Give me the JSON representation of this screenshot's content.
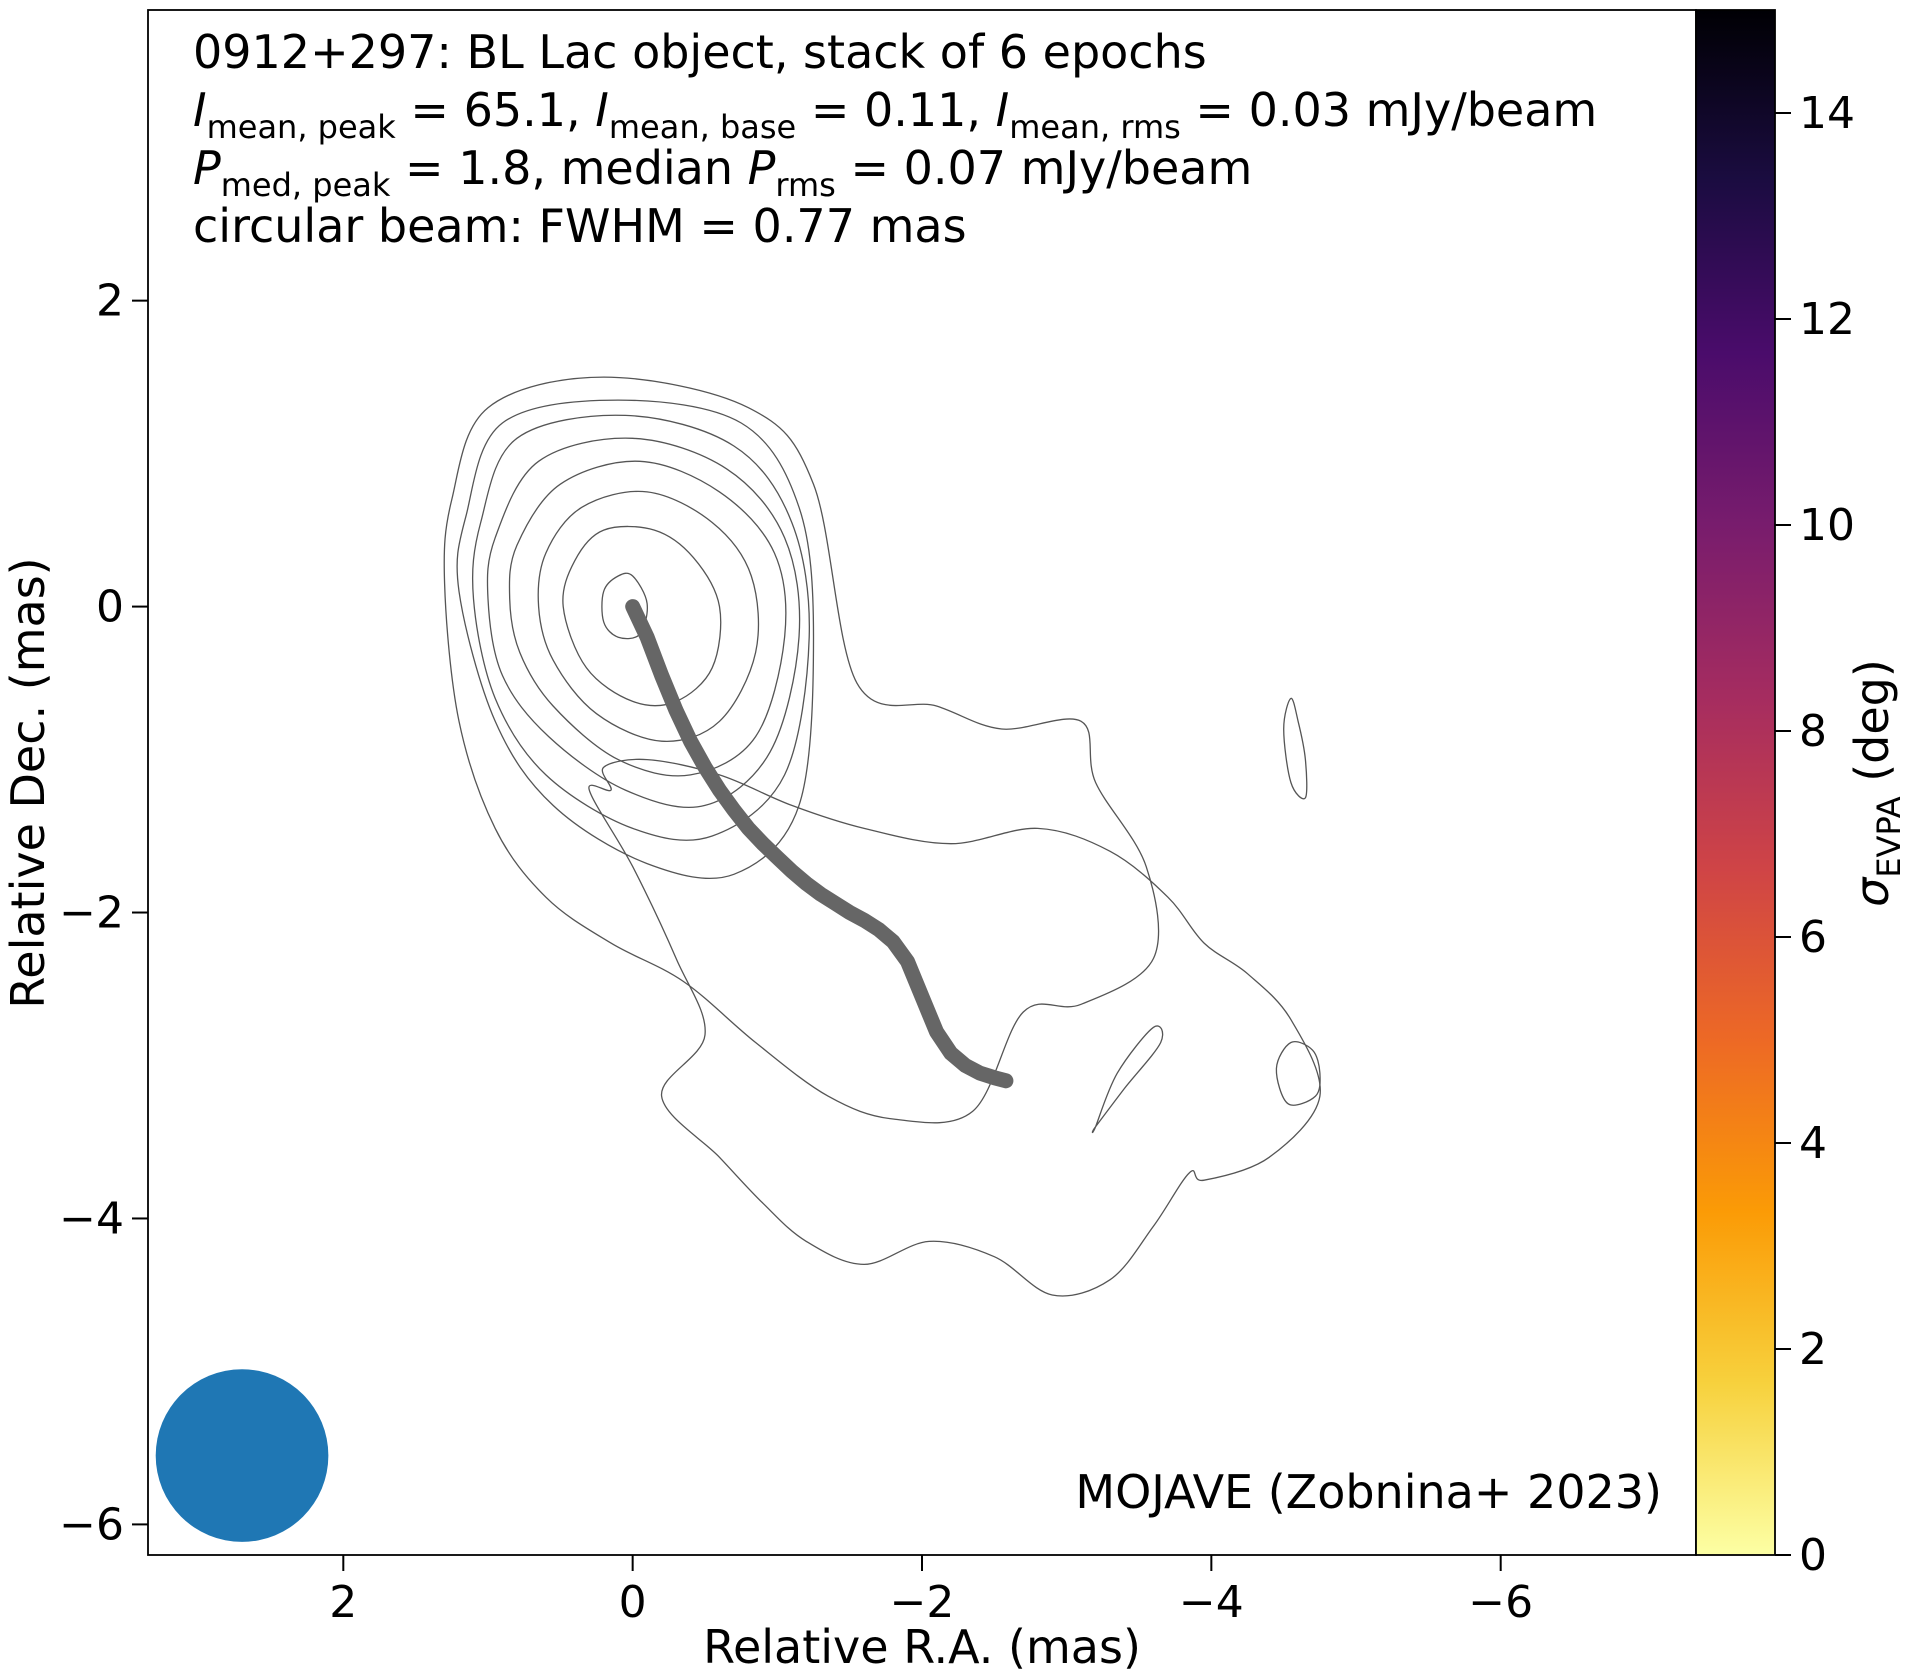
{
  "chart_data": {
    "type": "contour",
    "title_lines": [
      "0912+297: BL Lac object, stack of 6 epochs"
    ],
    "annotation_line2": {
      "i1_sym": "I",
      "i1_sub": "mean, peak",
      "i1_val": " = 65.1, ",
      "i2_sym": "I",
      "i2_sub": "mean, base",
      "i2_val": " = 0.11, ",
      "i3_sym": "I",
      "i3_sub": "mean, rms",
      "i3_val": " = 0.03 mJy/beam"
    },
    "annotation_line3": {
      "p1_sym": "P",
      "p1_sub": "med, peak",
      "p1_val": " = 1.8, median ",
      "p2_sym": "P",
      "p2_sub": "rms",
      "p2_val": " = 0.07 mJy/beam"
    },
    "annotation_line4": "circular beam: FWHM = 0.77 mas",
    "credit": "MOJAVE (Zobnina+ 2023)",
    "xlabel": "Relative R.A. (mas)",
    "ylabel": "Relative Dec. (mas)",
    "xlim": [
      3.35,
      -7.35
    ],
    "ylim": [
      -6.2,
      3.9
    ],
    "x_ticks": [
      2,
      0,
      -2,
      -4,
      -6
    ],
    "x_tick_labels": [
      "2",
      "0",
      "−2",
      "−4",
      "−6"
    ],
    "y_ticks": [
      2,
      0,
      -2,
      -4,
      -6
    ],
    "y_tick_labels": [
      "2",
      "0",
      "−2",
      "−4",
      "−6"
    ],
    "colorbar": {
      "label_sym": "σ",
      "label_sub": "EVPA",
      "label_unit": " (deg)",
      "range": [
        0,
        15
      ],
      "ticks": [
        0,
        2,
        4,
        6,
        8,
        10,
        12,
        14
      ],
      "tick_labels": [
        "0",
        "2",
        "4",
        "6",
        "8",
        "10",
        "12",
        "14"
      ],
      "colormap_stops": [
        "#fcffa4",
        "#f7d13d",
        "#fb9b06",
        "#ed6925",
        "#cf4446",
        "#a52c60",
        "#781c6d",
        "#4a0c6b",
        "#1b0c41",
        "#000004"
      ]
    },
    "beam": {
      "ra": 2.7,
      "dec": -5.55,
      "fwhm": 0.77,
      "color": "#1f77b4"
    },
    "ridgeline": {
      "color": "#666666",
      "ra": [
        0,
        -0.1,
        -0.2,
        -0.3,
        -0.4,
        -0.5,
        -0.6,
        -0.7,
        -0.8,
        -0.9,
        -1.0,
        -1.1,
        -1.2,
        -1.3,
        -1.4,
        -1.5,
        -1.6,
        -1.7,
        -1.8,
        -1.9,
        -2.0,
        -2.1,
        -2.2,
        -2.3,
        -2.4,
        -2.5,
        -2.58
      ],
      "dec": [
        0,
        -0.2,
        -0.45,
        -0.68,
        -0.88,
        -1.05,
        -1.2,
        -1.33,
        -1.45,
        -1.55,
        -1.64,
        -1.73,
        -1.81,
        -1.88,
        -1.94,
        -2.0,
        -2.05,
        -2.11,
        -2.19,
        -2.32,
        -2.55,
        -2.78,
        -2.92,
        -3.0,
        -3.05,
        -3.08,
        -3.1
      ]
    },
    "contours": [
      {
        "ra": [
          0.1,
          0.0,
          -0.1,
          -0.05,
          0.1,
          0.2,
          0.2
        ],
        "dec": [
          0.2,
          0.2,
          0.02,
          -0.18,
          -0.2,
          -0.1,
          0.1
        ]
      },
      {
        "ra": [
          0.4,
          0.2,
          -0.15,
          -0.42,
          -0.6,
          -0.55,
          -0.3,
          0.0,
          0.32,
          0.48
        ],
        "dec": [
          0.3,
          0.5,
          0.5,
          0.32,
          0.0,
          -0.4,
          -0.62,
          -0.62,
          -0.4,
          0.0
        ]
      },
      {
        "ra": [
          0.6,
          0.35,
          -0.1,
          -0.55,
          -0.82,
          -0.85,
          -0.6,
          -0.2,
          0.25,
          0.55,
          0.65
        ],
        "dec": [
          0.35,
          0.65,
          0.75,
          0.55,
          0.2,
          -0.3,
          -0.75,
          -0.88,
          -0.7,
          -0.35,
          0.0
        ]
      },
      {
        "ra": [
          0.8,
          0.5,
          -0.05,
          -0.6,
          -0.98,
          -1.05,
          -0.85,
          -0.4,
          0.1,
          0.55,
          0.78,
          0.85
        ],
        "dec": [
          0.4,
          0.8,
          0.95,
          0.75,
          0.35,
          -0.2,
          -0.85,
          -1.1,
          -1.0,
          -0.65,
          -0.3,
          0.05
        ]
      },
      {
        "ra": [
          0.95,
          0.65,
          0.0,
          -0.65,
          -1.05,
          -1.15,
          -0.95,
          -0.5,
          0.05,
          0.58,
          0.9,
          1.0
        ],
        "dec": [
          0.45,
          0.95,
          1.1,
          0.9,
          0.45,
          -0.2,
          -0.95,
          -1.3,
          -1.2,
          -0.85,
          -0.45,
          0.05
        ]
      },
      {
        "ra": [
          1.05,
          0.8,
          0.05,
          -0.7,
          -1.1,
          -1.22,
          -1.05,
          -0.55,
          0.0,
          0.6,
          0.95,
          1.1
        ],
        "dec": [
          0.55,
          1.1,
          1.25,
          1.05,
          0.55,
          -0.2,
          -1.1,
          -1.5,
          -1.45,
          -1.1,
          -0.6,
          0.05
        ]
      },
      {
        "ra": [
          1.15,
          0.9,
          0.1,
          -0.75,
          -1.15,
          -1.25,
          -1.15,
          -0.7,
          -0.1,
          0.55,
          0.95,
          1.2
        ],
        "dec": [
          0.6,
          1.2,
          1.35,
          1.2,
          0.65,
          -0.2,
          -1.3,
          -1.75,
          -1.68,
          -1.3,
          -0.75,
          0.1
        ]
      },
      {
        "ra": [
          1.25,
          1.0,
          0.2,
          -0.8,
          -1.25,
          -1.55,
          -2.1,
          -2.55,
          -3.1,
          -3.2,
          -3.55,
          -3.6,
          -3.1,
          -2.7,
          -2.35,
          -1.8,
          -1.35,
          -0.85,
          -0.35,
          0.15,
          0.6,
          0.95,
          1.2,
          1.3
        ],
        "dec": [
          0.7,
          1.3,
          1.5,
          1.3,
          0.8,
          -0.5,
          -0.65,
          -0.8,
          -0.75,
          -1.15,
          -1.7,
          -2.3,
          -2.6,
          -2.65,
          -3.3,
          -3.35,
          -3.2,
          -2.85,
          -2.45,
          -2.2,
          -1.9,
          -1.45,
          -0.75,
          0.15
        ]
      },
      {
        "ra": [
          0.3,
          0.0,
          -0.3,
          -0.5,
          -0.2,
          -0.6,
          -0.9,
          -1.2,
          -1.6,
          -2.05,
          -2.5,
          -2.9,
          -3.3,
          -3.6,
          -3.85,
          -3.95,
          -4.4,
          -4.75,
          -4.55,
          -4.25,
          -3.95,
          -3.7,
          -3.3,
          -2.8,
          -2.2,
          -1.6,
          -1.1,
          -0.6,
          -0.1,
          0.2,
          0.15
        ],
        "dec": [
          -1.2,
          -1.7,
          -2.3,
          -2.8,
          -3.2,
          -3.6,
          -3.9,
          -4.15,
          -4.3,
          -4.15,
          -4.25,
          -4.5,
          -4.4,
          -4.05,
          -3.7,
          -3.75,
          -3.6,
          -3.2,
          -2.7,
          -2.4,
          -2.2,
          -1.9,
          -1.6,
          -1.45,
          -1.55,
          -1.45,
          -1.3,
          -1.1,
          -1.0,
          -1.05,
          -1.2
        ]
      },
      {
        "ra": [
          -4.75,
          -4.7,
          -4.55,
          -4.45,
          -4.53,
          -4.72
        ],
        "dec": [
          -3.05,
          -2.9,
          -2.85,
          -3.02,
          -3.25,
          -3.2
        ]
      },
      {
        "ra": [
          -3.2,
          -3.4,
          -3.65,
          -3.6,
          -3.35,
          -3.2
        ],
        "dec": [
          -3.4,
          -3.15,
          -2.85,
          -2.75,
          -3.05,
          -3.4
        ]
      },
      {
        "ra": [
          -4.65,
          -4.6,
          -4.55,
          -4.5,
          -4.55,
          -4.65
        ],
        "dec": [
          -1.0,
          -0.75,
          -0.6,
          -0.8,
          -1.15,
          -1.25
        ]
      }
    ]
  }
}
